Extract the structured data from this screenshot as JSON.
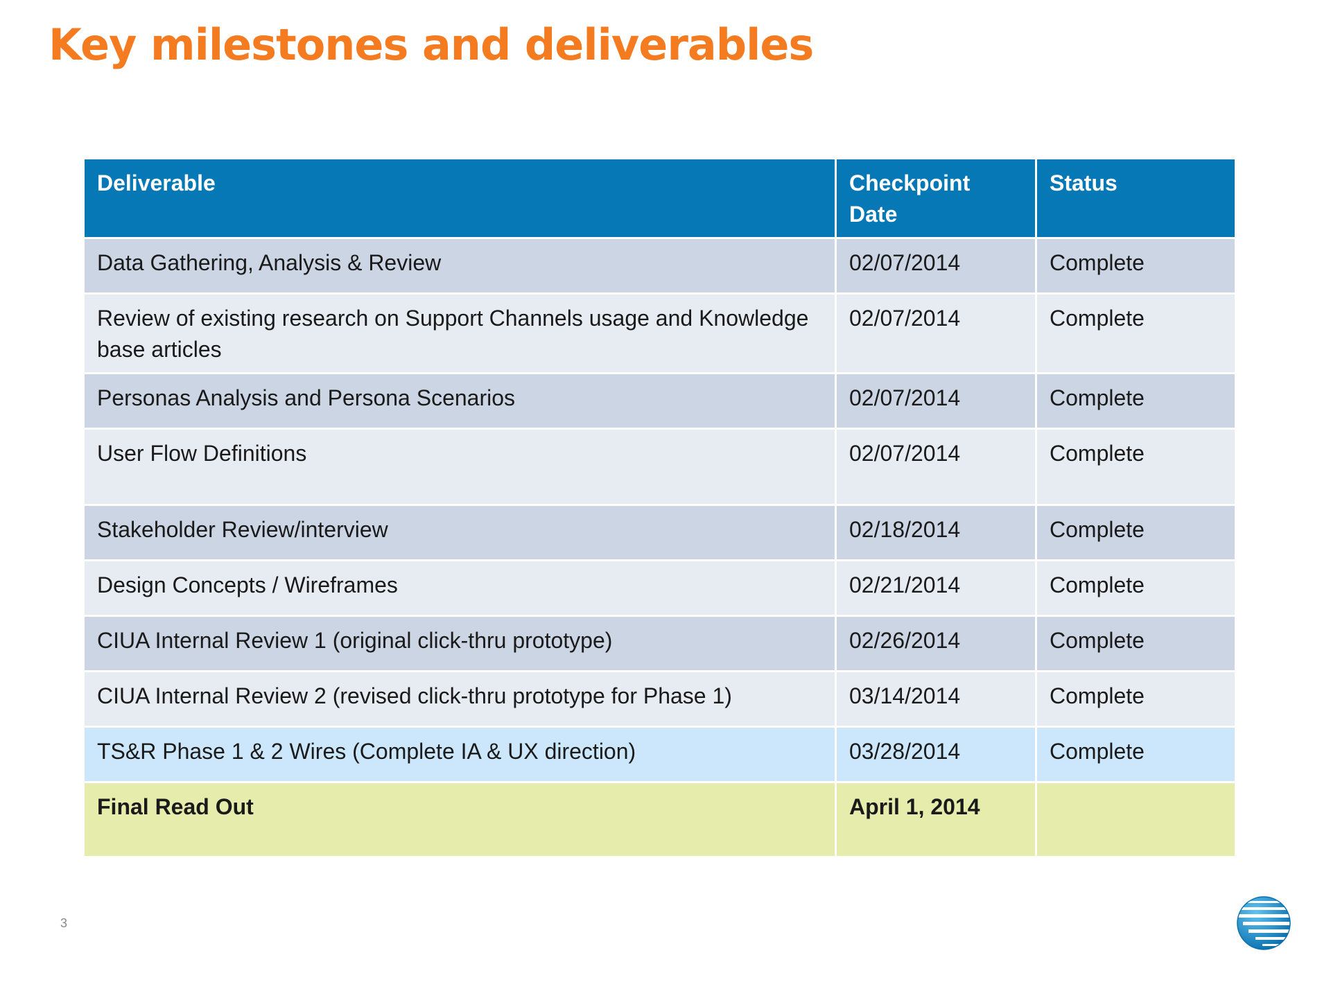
{
  "slide": {
    "title": "Key milestones and deliverables",
    "page_number": "3"
  },
  "table": {
    "headers": {
      "deliverable": "Deliverable",
      "checkpoint_date": "Checkpoint Date",
      "status": "Status"
    },
    "rows": [
      {
        "deliverable": "Data Gathering, Analysis & Review",
        "date": "02/07/2014",
        "status": "Complete"
      },
      {
        "deliverable": "Review of existing research on Support Channels usage and Knowledge base articles",
        "date": "02/07/2014",
        "status": "Complete"
      },
      {
        "deliverable": "Personas Analysis and Persona Scenarios",
        "date": "02/07/2014",
        "status": "Complete"
      },
      {
        "deliverable": "User Flow Definitions",
        "date": "02/07/2014",
        "status": "Complete"
      },
      {
        "deliverable": "Stakeholder Review/interview",
        "date": "02/18/2014",
        "status": "Complete"
      },
      {
        "deliverable": "Design Concepts / Wireframes",
        "date": "02/21/2014",
        "status": "Complete"
      },
      {
        "deliverable": "CIUA Internal Review 1 (original click-thru prototype)",
        "date": "02/26/2014",
        "status": "Complete"
      },
      {
        "deliverable": "CIUA Internal Review 2 (revised click-thru prototype for Phase 1)",
        "date": "03/14/2014",
        "status": "Complete"
      },
      {
        "deliverable": "TS&R Phase 1 & 2  Wires (Complete IA & UX direction)",
        "date": "03/28/2014",
        "status": "Complete"
      },
      {
        "deliverable": "Final Read Out",
        "date": "April 1, 2014",
        "status": ""
      }
    ]
  },
  "colors": {
    "title": "#f47b20",
    "header_bg": "#0678b5",
    "row_dark": "#cbd5e3",
    "row_light": "#e7ebf2",
    "row_highlight": "#cce7fb",
    "row_final": "#e6edac"
  },
  "logo": {
    "icon": "globe-logo-icon"
  }
}
